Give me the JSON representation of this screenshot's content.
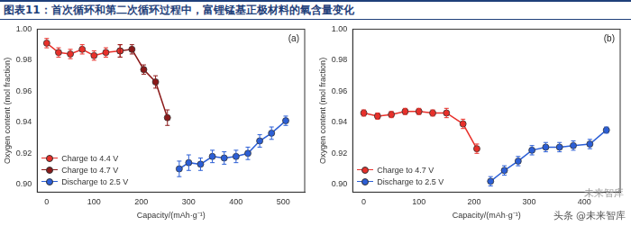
{
  "title": "图表11：首次循环和第二次循环过程中，富锂锰基正极材料的氧含量变化",
  "watermarks": [
    "未来智库",
    "头条 @未来智库"
  ],
  "chart_data": [
    {
      "type": "line",
      "panel_label": "(a)",
      "x_label": "Capacity/(mAh·g⁻¹)",
      "y_label": "Oxygen content (mol fraction)",
      "xlim": [
        -20,
        545
      ],
      "xticks": [
        0,
        100,
        200,
        300,
        400,
        500
      ],
      "ylim": [
        0.895,
        1.0
      ],
      "yticks": [
        {
          "value": 0.9,
          "label": "0.90"
        },
        {
          "value": 0.92,
          "label": "0.92"
        },
        {
          "value": 0.94,
          "label": "0.94"
        },
        {
          "value": 0.96,
          "label": "0.96"
        },
        {
          "value": 0.98,
          "label": "0.98"
        },
        {
          "value": 1.0,
          "label": "1.00"
        }
      ],
      "grid": false,
      "legend": "lower left",
      "series": [
        {
          "name": "Charge to 4.4 V",
          "color": "#e8302a",
          "marker": "circle",
          "line_style": "solid",
          "x": [
            0,
            25,
            50,
            75,
            100,
            125,
            155
          ],
          "values": [
            0.991,
            0.985,
            0.984,
            0.987,
            0.983,
            0.985,
            0.986
          ],
          "errors": [
            0.003,
            0.003,
            0.003,
            0.003,
            0.003,
            0.003,
            0.004
          ]
        },
        {
          "name": "Charge to 4.7 V",
          "color": "#8b1a1a",
          "marker": "circle",
          "line_style": "solid",
          "x": [
            155,
            180,
            205,
            230,
            255
          ],
          "values": [
            0.986,
            0.987,
            0.974,
            0.966,
            0.943
          ],
          "errors": [
            0.004,
            0.003,
            0.003,
            0.004,
            0.005
          ]
        },
        {
          "name": "Discharge to 2.5 V",
          "color": "#2c5fd6",
          "marker": "circle",
          "line_style": "solid",
          "x": [
            280,
            300,
            325,
            350,
            375,
            400,
            425,
            450,
            475,
            505
          ],
          "values": [
            0.91,
            0.914,
            0.913,
            0.918,
            0.917,
            0.918,
            0.92,
            0.928,
            0.933,
            0.941
          ],
          "errors": [
            0.005,
            0.005,
            0.004,
            0.004,
            0.004,
            0.004,
            0.004,
            0.004,
            0.004,
            0.003
          ]
        }
      ]
    },
    {
      "type": "line",
      "panel_label": "(b)",
      "x_label": "Capacity/(mAh·g⁻¹)",
      "y_label": "Oxygen content (mol fraction)",
      "xlim": [
        -20,
        465
      ],
      "xticks": [
        0,
        100,
        200,
        300,
        400
      ],
      "ylim": [
        0.895,
        1.0
      ],
      "yticks": [
        {
          "value": 0.9,
          "label": "0.90"
        },
        {
          "value": 0.92,
          "label": "0.92"
        },
        {
          "value": 0.94,
          "label": "0.94"
        },
        {
          "value": 0.96,
          "label": "0.96"
        },
        {
          "value": 0.98,
          "label": "0.98"
        },
        {
          "value": 1.0,
          "label": "1.00"
        }
      ],
      "grid": false,
      "legend": "lower left",
      "series": [
        {
          "name": "Charge to 4.7 V",
          "color": "#e8302a",
          "marker": "circle",
          "line_style": "solid",
          "x": [
            0,
            25,
            50,
            75,
            100,
            125,
            150,
            180,
            205
          ],
          "values": [
            0.946,
            0.944,
            0.945,
            0.947,
            0.947,
            0.946,
            0.946,
            0.939,
            0.923
          ],
          "errors": [
            0.002,
            0.002,
            0.002,
            0.002,
            0.002,
            0.002,
            0.003,
            0.003,
            0.003
          ]
        },
        {
          "name": "Discharge to 2.5 V",
          "color": "#2c5fd6",
          "marker": "circle",
          "line_style": "solid",
          "x": [
            230,
            255,
            280,
            305,
            330,
            355,
            380,
            410,
            440
          ],
          "values": [
            0.902,
            0.909,
            0.915,
            0.922,
            0.924,
            0.924,
            0.925,
            0.926,
            0.935
          ],
          "errors": [
            0.003,
            0.003,
            0.003,
            0.003,
            0.003,
            0.003,
            0.003,
            0.003,
            0.002
          ]
        }
      ]
    }
  ]
}
